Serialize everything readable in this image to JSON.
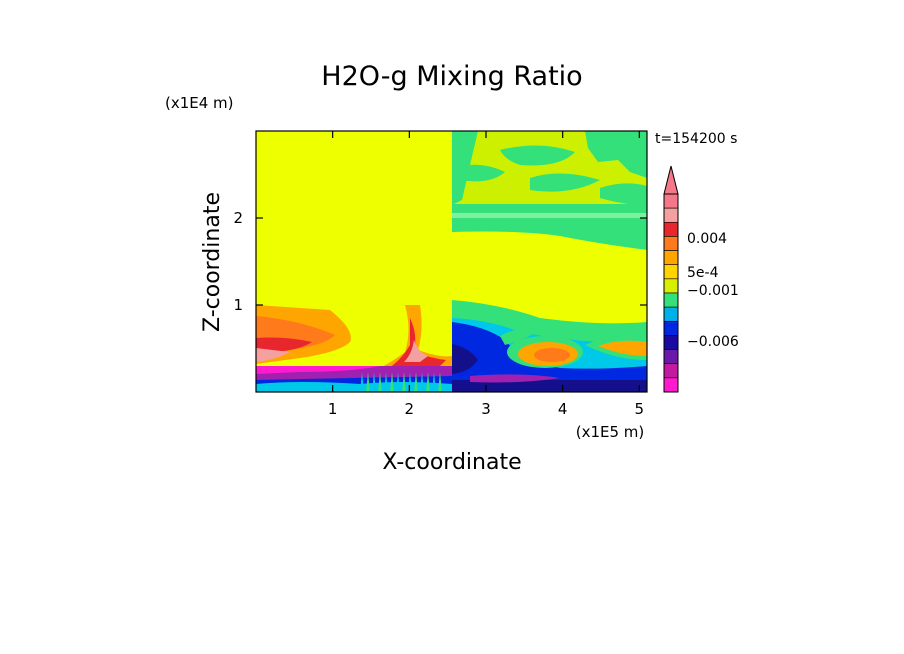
{
  "chart_data": {
    "type": "heatmap",
    "title": "H2O-g Mixing Ratio",
    "xlabel": "X-coordinate",
    "ylabel": "Z-coordinate",
    "x_scale_label": "(x1E5 m)",
    "y_scale_label": "(x1E4 m)",
    "time_label": "t=154200 s",
    "xlim": [
      0,
      5.1
    ],
    "ylim": [
      0,
      3.0
    ],
    "x_ticks": [
      "1",
      "2",
      "3",
      "4",
      "5"
    ],
    "x_tick_values": [
      1,
      2,
      3,
      4,
      5
    ],
    "y_ticks": [
      "1",
      "2"
    ],
    "y_tick_values": [
      1,
      2
    ],
    "colorbar": {
      "labels": [
        "0.004",
        "5e-4",
        "−0.001",
        "−0.006"
      ],
      "colors": [
        "#f4778a",
        "#f5a0a0",
        "#e8262e",
        "#ff7a1a",
        "#ffa500",
        "#ffd400",
        "#d8f000",
        "#33e07a",
        "#00b0e8",
        "#0028e0",
        "#1a0aa0",
        "#6a1aa8",
        "#c21aa0",
        "#ff1ad0"
      ],
      "extends_top": true
    },
    "field_colors": {
      "background": "#eeff00",
      "yellow_green": "#ccf000",
      "green": "#33e07a",
      "cyan": "#00c8e8",
      "blue": "#0028e0",
      "navy": "#14108c",
      "orange": "#ffa500",
      "dark_orange": "#ff7a1a",
      "red": "#e8262e",
      "pink": "#f5a0a0",
      "purple": "#a020b0",
      "magenta": "#ff1ad0"
    }
  }
}
